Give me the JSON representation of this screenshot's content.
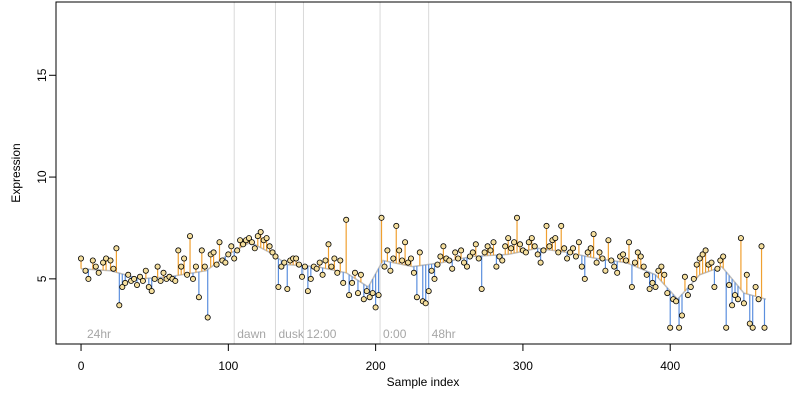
{
  "chart_data": {
    "type": "scatter",
    "title": "",
    "xlabel": "Sample index",
    "ylabel": "Expression",
    "xlim": [
      -17,
      482
    ],
    "ylim": [
      1.8,
      18.6
    ],
    "xticks": [
      0,
      100,
      200,
      300,
      400
    ],
    "yticks": [
      5,
      10,
      15
    ],
    "grid": false,
    "baseline_series": {
      "description_visible": false
    },
    "colors": {
      "above": "#f0a030",
      "below": "#5b8fde",
      "baseline": "#bdbdbd",
      "point_fill": "#f5df9e",
      "point_edge": "#000000",
      "marker": "#d9d9d9"
    },
    "markers": [
      {
        "x": 2,
        "label": "24hr"
      },
      {
        "x": 104,
        "label": "dawn"
      },
      {
        "x": 132,
        "label": "dusk"
      },
      {
        "x": 151,
        "label": "12:00"
      },
      {
        "x": 203,
        "label": "0:00"
      },
      {
        "x": 236,
        "label": "48hr"
      }
    ],
    "baseline": [
      [
        0,
        5.5
      ],
      [
        20,
        5.4
      ],
      [
        40,
        5.0
      ],
      [
        60,
        5.1
      ],
      [
        85,
        5.4
      ],
      [
        100,
        6.2
      ],
      [
        115,
        6.8
      ],
      [
        128,
        6.3
      ],
      [
        140,
        5.7
      ],
      [
        160,
        5.6
      ],
      [
        180,
        5.3
      ],
      [
        195,
        4.6
      ],
      [
        205,
        5.9
      ],
      [
        225,
        5.6
      ],
      [
        245,
        5.8
      ],
      [
        265,
        6.1
      ],
      [
        290,
        6.2
      ],
      [
        310,
        6.5
      ],
      [
        330,
        6.3
      ],
      [
        350,
        6.0
      ],
      [
        370,
        5.8
      ],
      [
        390,
        5.2
      ],
      [
        405,
        4.0
      ],
      [
        420,
        5.2
      ],
      [
        435,
        5.6
      ],
      [
        450,
        4.3
      ],
      [
        465,
        4.0
      ]
    ],
    "points": [
      [
        0,
        6.0
      ],
      [
        3,
        5.4
      ],
      [
        5,
        5.0
      ],
      [
        8,
        5.9
      ],
      [
        10,
        5.6
      ],
      [
        12,
        5.3
      ],
      [
        15,
        5.8
      ],
      [
        17,
        6.0
      ],
      [
        20,
        5.9
      ],
      [
        22,
        5.5
      ],
      [
        24,
        6.5
      ],
      [
        26,
        3.7
      ],
      [
        28,
        4.6
      ],
      [
        30,
        4.8
      ],
      [
        32,
        5.2
      ],
      [
        34,
        4.9
      ],
      [
        36,
        5.0
      ],
      [
        38,
        4.7
      ],
      [
        40,
        5.1
      ],
      [
        42,
        4.9
      ],
      [
        44,
        5.4
      ],
      [
        46,
        4.6
      ],
      [
        48,
        4.4
      ],
      [
        50,
        5.0
      ],
      [
        52,
        5.6
      ],
      [
        54,
        4.9
      ],
      [
        56,
        5.3
      ],
      [
        58,
        5.0
      ],
      [
        60,
        5.1
      ],
      [
        62,
        5.0
      ],
      [
        64,
        4.9
      ],
      [
        66,
        6.4
      ],
      [
        68,
        5.6
      ],
      [
        70,
        6.0
      ],
      [
        72,
        5.2
      ],
      [
        74,
        7.1
      ],
      [
        76,
        5.0
      ],
      [
        78,
        5.6
      ],
      [
        80,
        4.1
      ],
      [
        82,
        6.4
      ],
      [
        84,
        5.6
      ],
      [
        86,
        3.1
      ],
      [
        88,
        6.2
      ],
      [
        90,
        6.3
      ],
      [
        92,
        5.7
      ],
      [
        94,
        6.8
      ],
      [
        96,
        5.9
      ],
      [
        98,
        5.8
      ],
      [
        100,
        6.2
      ],
      [
        102,
        6.6
      ],
      [
        104,
        6.0
      ],
      [
        106,
        6.4
      ],
      [
        108,
        6.9
      ],
      [
        110,
        6.7
      ],
      [
        112,
        6.9
      ],
      [
        114,
        7.0
      ],
      [
        116,
        6.8
      ],
      [
        118,
        6.5
      ],
      [
        120,
        7.1
      ],
      [
        122,
        7.3
      ],
      [
        124,
        6.9
      ],
      [
        126,
        7.0
      ],
      [
        128,
        6.6
      ],
      [
        130,
        6.3
      ],
      [
        132,
        6.1
      ],
      [
        134,
        4.6
      ],
      [
        136,
        5.6
      ],
      [
        138,
        5.8
      ],
      [
        140,
        4.5
      ],
      [
        142,
        5.9
      ],
      [
        144,
        6.0
      ],
      [
        146,
        6.0
      ],
      [
        148,
        5.7
      ],
      [
        150,
        5.1
      ],
      [
        152,
        5.6
      ],
      [
        154,
        4.4
      ],
      [
        156,
        5.0
      ],
      [
        158,
        5.6
      ],
      [
        160,
        5.5
      ],
      [
        162,
        5.8
      ],
      [
        164,
        5.2
      ],
      [
        166,
        5.9
      ],
      [
        168,
        6.7
      ],
      [
        170,
        5.6
      ],
      [
        172,
        6.0
      ],
      [
        174,
        5.3
      ],
      [
        176,
        5.9
      ],
      [
        178,
        4.8
      ],
      [
        180,
        7.9
      ],
      [
        182,
        4.2
      ],
      [
        184,
        4.8
      ],
      [
        186,
        5.3
      ],
      [
        188,
        4.3
      ],
      [
        190,
        5.2
      ],
      [
        192,
        4.0
      ],
      [
        194,
        4.4
      ],
      [
        196,
        4.1
      ],
      [
        198,
        4.3
      ],
      [
        200,
        3.6
      ],
      [
        202,
        4.2
      ],
      [
        204,
        8.0
      ],
      [
        206,
        5.6
      ],
      [
        208,
        6.4
      ],
      [
        210,
        5.4
      ],
      [
        212,
        6.0
      ],
      [
        214,
        7.6
      ],
      [
        216,
        6.4
      ],
      [
        218,
        5.9
      ],
      [
        220,
        6.8
      ],
      [
        222,
        5.8
      ],
      [
        224,
        6.0
      ],
      [
        226,
        5.3
      ],
      [
        228,
        4.1
      ],
      [
        230,
        6.3
      ],
      [
        232,
        3.9
      ],
      [
        234,
        3.8
      ],
      [
        236,
        4.4
      ],
      [
        238,
        5.4
      ],
      [
        240,
        5.0
      ],
      [
        242,
        5.7
      ],
      [
        244,
        6.1
      ],
      [
        246,
        6.6
      ],
      [
        248,
        6.0
      ],
      [
        250,
        5.9
      ],
      [
        252,
        5.5
      ],
      [
        254,
        6.3
      ],
      [
        256,
        6.0
      ],
      [
        258,
        6.4
      ],
      [
        260,
        5.8
      ],
      [
        262,
        5.6
      ],
      [
        264,
        6.1
      ],
      [
        266,
        6.3
      ],
      [
        268,
        6.7
      ],
      [
        270,
        6.0
      ],
      [
        272,
        4.5
      ],
      [
        274,
        6.3
      ],
      [
        276,
        6.6
      ],
      [
        278,
        6.4
      ],
      [
        280,
        6.8
      ],
      [
        282,
        5.6
      ],
      [
        284,
        6.1
      ],
      [
        286,
        5.9
      ],
      [
        288,
        6.6
      ],
      [
        290,
        7.0
      ],
      [
        292,
        6.5
      ],
      [
        294,
        6.8
      ],
      [
        296,
        8.0
      ],
      [
        298,
        6.7
      ],
      [
        300,
        6.4
      ],
      [
        302,
        6.3
      ],
      [
        304,
        6.8
      ],
      [
        306,
        7.0
      ],
      [
        308,
        6.6
      ],
      [
        310,
        6.2
      ],
      [
        312,
        5.8
      ],
      [
        314,
        6.4
      ],
      [
        316,
        7.6
      ],
      [
        318,
        6.6
      ],
      [
        320,
        6.9
      ],
      [
        322,
        7.0
      ],
      [
        324,
        6.3
      ],
      [
        326,
        7.6
      ],
      [
        328,
        6.5
      ],
      [
        330,
        6.0
      ],
      [
        332,
        6.3
      ],
      [
        334,
        6.5
      ],
      [
        336,
        6.1
      ],
      [
        338,
        6.8
      ],
      [
        340,
        5.6
      ],
      [
        342,
        5.0
      ],
      [
        344,
        6.3
      ],
      [
        346,
        6.5
      ],
      [
        348,
        7.2
      ],
      [
        350,
        5.8
      ],
      [
        352,
        6.3
      ],
      [
        354,
        6.0
      ],
      [
        356,
        5.4
      ],
      [
        358,
        6.9
      ],
      [
        360,
        5.9
      ],
      [
        362,
        5.6
      ],
      [
        364,
        5.3
      ],
      [
        366,
        6.1
      ],
      [
        368,
        6.2
      ],
      [
        370,
        5.9
      ],
      [
        372,
        6.8
      ],
      [
        374,
        4.6
      ],
      [
        376,
        5.8
      ],
      [
        378,
        6.3
      ],
      [
        380,
        6.1
      ],
      [
        382,
        5.6
      ],
      [
        384,
        5.2
      ],
      [
        386,
        4.5
      ],
      [
        388,
        4.8
      ],
      [
        390,
        4.6
      ],
      [
        392,
        5.4
      ],
      [
        394,
        5.6
      ],
      [
        396,
        5.2
      ],
      [
        398,
        4.3
      ],
      [
        400,
        2.6
      ],
      [
        402,
        4.0
      ],
      [
        404,
        3.9
      ],
      [
        406,
        2.6
      ],
      [
        408,
        3.2
      ],
      [
        410,
        5.1
      ],
      [
        412,
        4.2
      ],
      [
        414,
        4.6
      ],
      [
        416,
        5.0
      ],
      [
        418,
        5.7
      ],
      [
        420,
        6.0
      ],
      [
        422,
        6.2
      ],
      [
        424,
        6.4
      ],
      [
        426,
        5.7
      ],
      [
        428,
        5.8
      ],
      [
        430,
        4.6
      ],
      [
        432,
        5.5
      ],
      [
        434,
        5.9
      ],
      [
        436,
        6.1
      ],
      [
        438,
        2.6
      ],
      [
        440,
        4.7
      ],
      [
        442,
        3.7
      ],
      [
        444,
        4.2
      ],
      [
        446,
        4.0
      ],
      [
        448,
        7.0
      ],
      [
        450,
        3.8
      ],
      [
        452,
        5.2
      ],
      [
        454,
        2.8
      ],
      [
        456,
        2.6
      ],
      [
        458,
        4.6
      ],
      [
        460,
        4.0
      ],
      [
        462,
        6.6
      ],
      [
        464,
        2.6
      ]
    ]
  }
}
